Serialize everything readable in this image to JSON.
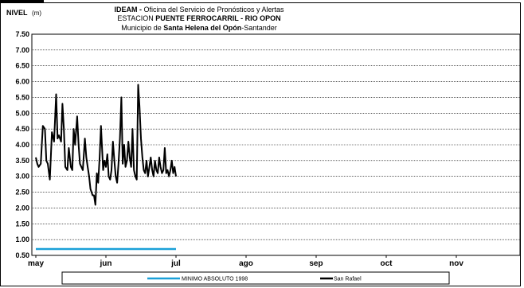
{
  "chart_data": {
    "type": "line",
    "ylabel_prefix": "NIVEL",
    "ylabel_unit": "(m)",
    "title_lines": [
      {
        "bold": "IDEAM - ",
        "normal": "Oficina del Servicio de Pronósticos y Alertas"
      },
      {
        "normal": "ESTACION ",
        "bold": "PUENTE FERROCARRIL - RIO OPON"
      },
      {
        "normal": "Municipio de ",
        "bold": "Santa Helena del Opón",
        "normal2": "-Santander"
      }
    ],
    "ylim": [
      0.5,
      7.5
    ],
    "yticks": [
      "7.50",
      "7.00",
      "6.50",
      "6.00",
      "5.50",
      "5.00",
      "4.50",
      "4.00",
      "3.50",
      "3.00",
      "2.50",
      "2.00",
      "1.50",
      "1.00",
      "0.50"
    ],
    "xticks": [
      "may",
      "jun",
      "jul",
      "ago",
      "sep",
      "oct",
      "nov"
    ],
    "grid": true,
    "legend_position": "bottom",
    "series": [
      {
        "name": "MINIMO ABSOLUTO 1998",
        "color": "#1aa0d8",
        "x_start": 0.0,
        "x_end": 2.0,
        "constant_value": 0.7
      },
      {
        "name": "San Rafael",
        "color": "#000000",
        "x": [
          0.0,
          0.02,
          0.04,
          0.07,
          0.1,
          0.13,
          0.15,
          0.17,
          0.2,
          0.23,
          0.26,
          0.29,
          0.31,
          0.33,
          0.36,
          0.38,
          0.4,
          0.42,
          0.45,
          0.47,
          0.5,
          0.52,
          0.54,
          0.56,
          0.59,
          0.61,
          0.63,
          0.65,
          0.67,
          0.7,
          0.72,
          0.74,
          0.76,
          0.78,
          0.81,
          0.83,
          0.85,
          0.87,
          0.89,
          0.91,
          0.93,
          0.96,
          0.98,
          1.0,
          1.02,
          1.04,
          1.06,
          1.08,
          1.1,
          1.12,
          1.14,
          1.16,
          1.18,
          1.2,
          1.22,
          1.24,
          1.26,
          1.28,
          1.3,
          1.32,
          1.34,
          1.36,
          1.38,
          1.4,
          1.42,
          1.44,
          1.46,
          1.48,
          1.5,
          1.52,
          1.54,
          1.56,
          1.58,
          1.6,
          1.62,
          1.64,
          1.66,
          1.68,
          1.7,
          1.72,
          1.74,
          1.76,
          1.78,
          1.8,
          1.82,
          1.84,
          1.86,
          1.88,
          1.9,
          1.92,
          1.94,
          1.96,
          1.98,
          2.0
        ],
        "y": [
          3.6,
          3.4,
          3.3,
          3.4,
          4.6,
          4.5,
          3.5,
          3.4,
          2.9,
          4.4,
          4.1,
          5.6,
          4.2,
          4.3,
          4.1,
          5.3,
          4.5,
          3.3,
          3.2,
          3.9,
          3.3,
          3.2,
          4.5,
          4.0,
          4.9,
          4.0,
          3.4,
          3.3,
          3.2,
          4.2,
          3.6,
          3.3,
          3.0,
          2.6,
          2.4,
          2.4,
          2.1,
          3.1,
          2.8,
          3.6,
          4.6,
          3.2,
          3.5,
          3.3,
          3.7,
          3.0,
          2.9,
          3.2,
          4.1,
          3.5,
          3.0,
          2.8,
          3.4,
          4.2,
          5.5,
          3.4,
          4.0,
          3.3,
          3.5,
          4.1,
          3.6,
          3.3,
          4.5,
          3.2,
          3.0,
          2.9,
          5.9,
          5.2,
          4.2,
          3.6,
          3.2,
          3.1,
          3.5,
          3.0,
          3.3,
          3.6,
          3.2,
          3.0,
          3.5,
          3.2,
          3.1,
          3.6,
          3.3,
          3.1,
          3.2,
          3.9,
          3.1,
          3.2,
          3.0,
          3.2,
          3.5,
          3.1,
          3.3,
          3.0
        ]
      }
    ]
  }
}
